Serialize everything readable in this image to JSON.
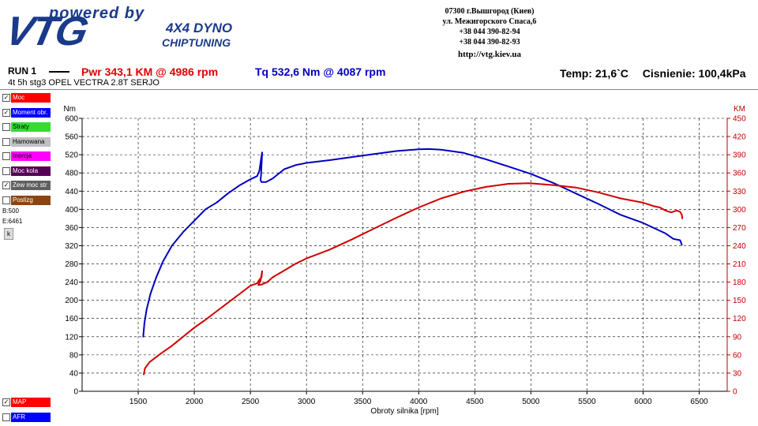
{
  "header": {
    "powered_by": "powered by",
    "brand": "VTG",
    "subtitle_1": "4X4 DYNO",
    "subtitle_2": "CHIPTUNING",
    "address_1": "07300 г.Вышгород (Киев)",
    "address_2": "ул. Межигорского Спаса,6",
    "phone_1": "+38 044 390-82-94",
    "phone_2": "+38 044 390-82-93",
    "url": "http://vtg.kiev.ua"
  },
  "run": {
    "label": "RUN 1",
    "power": "Pwr  343,1 KM @ 4986 rpm",
    "torque": "Tq 532,6 Nm @ 4087 rpm",
    "temp": "Temp: 21,6`C",
    "pressure": "Cisnienie: 100,4kPa",
    "vehicle": "4t 5h  stg3 OPEL VECTRA 2.8T SERJO"
  },
  "legend": [
    {
      "label": "Moc",
      "checked": true,
      "color": "#ff0000"
    },
    {
      "label": "Moment obr.",
      "checked": true,
      "color": "#0000ff"
    },
    {
      "label": "Straty",
      "checked": false,
      "color": "#33dd33"
    },
    {
      "label": "Hamowana",
      "checked": false,
      "color": "#c0c0c0"
    },
    {
      "label": "Inercja",
      "checked": false,
      "color": "#ff00ff"
    },
    {
      "label": "Moc kola",
      "checked": false,
      "color": "#550055"
    },
    {
      "label": "Zew moc str",
      "checked": true,
      "color": "#606060"
    },
    {
      "label": "Poslizg",
      "checked": false,
      "color": "#8b4513"
    }
  ],
  "legend_bottom": [
    {
      "label": "MAP",
      "checked": true,
      "color": "#ff0000"
    },
    {
      "label": "AFR",
      "checked": false,
      "color": "#0000ff"
    }
  ],
  "info": {
    "begin": "B:500",
    "end": "E:6461",
    "button": "k"
  },
  "chart_data": {
    "type": "line",
    "xlabel": "Obroty silnika [rpm]",
    "ylabel_left": "Nm",
    "ylabel_right": "KM",
    "xlim": [
      1000,
      6750
    ],
    "ylim_left": [
      0,
      600
    ],
    "ylim_right": [
      0,
      450
    ],
    "x_ticks": [
      1500,
      2000,
      2500,
      3000,
      3500,
      4000,
      4500,
      5000,
      5500,
      6000,
      6500
    ],
    "y_ticks_left": [
      0,
      40,
      80,
      120,
      160,
      200,
      240,
      280,
      320,
      360,
      400,
      440,
      480,
      520,
      560,
      600
    ],
    "y_ticks_right": [
      0,
      30,
      60,
      90,
      120,
      150,
      180,
      210,
      240,
      270,
      300,
      330,
      360,
      390,
      420,
      450
    ],
    "grid": true,
    "series": [
      {
        "name": "Moment obr.",
        "axis": "left",
        "color": "#0000c0",
        "points": [
          [
            1545,
            120
          ],
          [
            1555,
            150
          ],
          [
            1575,
            180
          ],
          [
            1610,
            215
          ],
          [
            1660,
            250
          ],
          [
            1720,
            285
          ],
          [
            1800,
            320
          ],
          [
            1900,
            350
          ],
          [
            2000,
            375
          ],
          [
            2100,
            400
          ],
          [
            2200,
            415
          ],
          [
            2300,
            435
          ],
          [
            2400,
            452
          ],
          [
            2500,
            466
          ],
          [
            2560,
            473
          ],
          [
            2580,
            485
          ],
          [
            2595,
            510
          ],
          [
            2605,
            525
          ],
          [
            2600,
            500
          ],
          [
            2595,
            475
          ],
          [
            2590,
            464
          ],
          [
            2600,
            460
          ],
          [
            2640,
            460
          ],
          [
            2700,
            468
          ],
          [
            2800,
            488
          ],
          [
            2900,
            497
          ],
          [
            3000,
            502
          ],
          [
            3200,
            508
          ],
          [
            3500,
            518
          ],
          [
            3800,
            528
          ],
          [
            4000,
            532
          ],
          [
            4087,
            532.6
          ],
          [
            4200,
            531
          ],
          [
            4400,
            524
          ],
          [
            4600,
            510
          ],
          [
            4800,
            494
          ],
          [
            5000,
            478
          ],
          [
            5200,
            458
          ],
          [
            5400,
            435
          ],
          [
            5600,
            412
          ],
          [
            5800,
            388
          ],
          [
            6000,
            370
          ],
          [
            6200,
            347
          ],
          [
            6270,
            335
          ],
          [
            6330,
            332
          ],
          [
            6340,
            326
          ],
          [
            6345,
            322
          ]
        ]
      },
      {
        "name": "Moc",
        "axis": "right",
        "color": "#d00000",
        "points": [
          [
            1550,
            28
          ],
          [
            1560,
            38
          ],
          [
            1600,
            48
          ],
          [
            1700,
            62
          ],
          [
            1800,
            75
          ],
          [
            1900,
            90
          ],
          [
            2000,
            105
          ],
          [
            2100,
            118
          ],
          [
            2200,
            132
          ],
          [
            2300,
            146
          ],
          [
            2400,
            160
          ],
          [
            2500,
            174
          ],
          [
            2560,
            178
          ],
          [
            2580,
            184
          ],
          [
            2600,
            188
          ],
          [
            2605,
            198
          ],
          [
            2590,
            182
          ],
          [
            2570,
            175
          ],
          [
            2600,
            176
          ],
          [
            2650,
            180
          ],
          [
            2700,
            188
          ],
          [
            2800,
            199
          ],
          [
            2900,
            210
          ],
          [
            3000,
            219
          ],
          [
            3200,
            233
          ],
          [
            3400,
            250
          ],
          [
            3600,
            268
          ],
          [
            3800,
            286
          ],
          [
            4000,
            303
          ],
          [
            4200,
            318
          ],
          [
            4400,
            329
          ],
          [
            4600,
            337
          ],
          [
            4800,
            342
          ],
          [
            4986,
            343.1
          ],
          [
            5200,
            340
          ],
          [
            5400,
            336
          ],
          [
            5600,
            328
          ],
          [
            5800,
            318
          ],
          [
            6000,
            311
          ],
          [
            6100,
            305
          ],
          [
            6150,
            303
          ],
          [
            6200,
            298
          ],
          [
            6250,
            295
          ],
          [
            6300,
            298
          ],
          [
            6330,
            296
          ],
          [
            6345,
            291
          ],
          [
            6350,
            285
          ]
        ]
      }
    ]
  }
}
